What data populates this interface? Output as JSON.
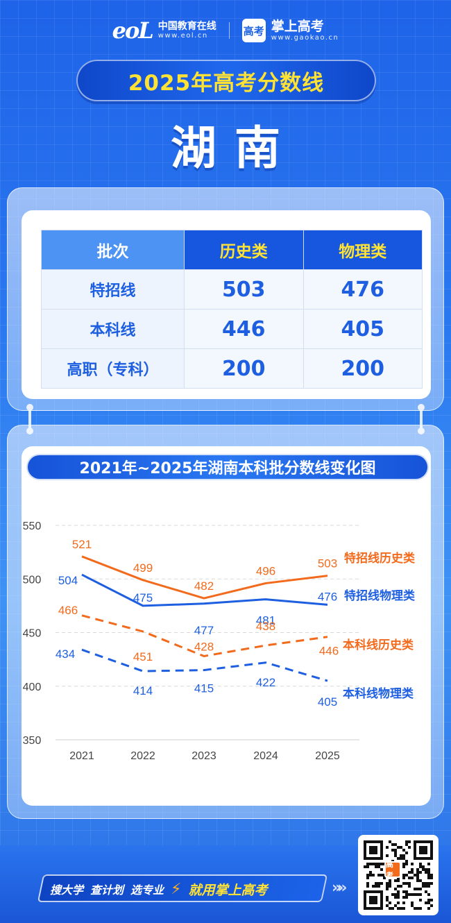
{
  "header": {
    "eol_mark": "eoL",
    "eol_name": "中国教育在线",
    "eol_url": "www.eol.cn",
    "gk_mark": "高考",
    "gk_name": "掌上高考",
    "gk_url": "www.gaokao.cn"
  },
  "title": "2025年高考分数线",
  "province": "湖南",
  "score_table": {
    "headers": [
      "批次",
      "历史类",
      "物理类"
    ],
    "rows": [
      {
        "label": "特招线",
        "history": "503",
        "physics": "476"
      },
      {
        "label": "本科线",
        "history": "446",
        "physics": "405"
      },
      {
        "label": "高职（专科）",
        "history": "200",
        "physics": "200"
      }
    ]
  },
  "chart_data": {
    "type": "line",
    "title": "2021年~2025年湖南本科批分数线变化图",
    "x": [
      "2021",
      "2022",
      "2023",
      "2024",
      "2025"
    ],
    "ylim": [
      350,
      550
    ],
    "yticks": [
      350,
      400,
      450,
      500,
      550
    ],
    "grid": true,
    "legend": "end-of-line labels",
    "series": [
      {
        "name": "特招线历史类",
        "values": [
          521,
          499,
          482,
          496,
          503
        ],
        "color": "#f26a1c",
        "style": "solid"
      },
      {
        "name": "特招线物理类",
        "values": [
          504,
          475,
          477,
          481,
          476
        ],
        "color": "#1d5fe0",
        "style": "solid"
      },
      {
        "name": "本科线历史类",
        "values": [
          466,
          451,
          428,
          438,
          446
        ],
        "color": "#f26a1c",
        "style": "dashed"
      },
      {
        "name": "本科线物理类",
        "values": [
          434,
          414,
          415,
          422,
          405
        ],
        "color": "#1d5fe0",
        "style": "dashed"
      }
    ]
  },
  "footer": {
    "slogan_items": [
      "搜大学",
      "查计划",
      "选专业"
    ],
    "cta": "就用掌上高考",
    "qr_badge": "高考"
  },
  "icons": {
    "bolt": "bolt-icon",
    "arrows": "double-chevron-right-icon",
    "qr": "qr-code-icon"
  }
}
